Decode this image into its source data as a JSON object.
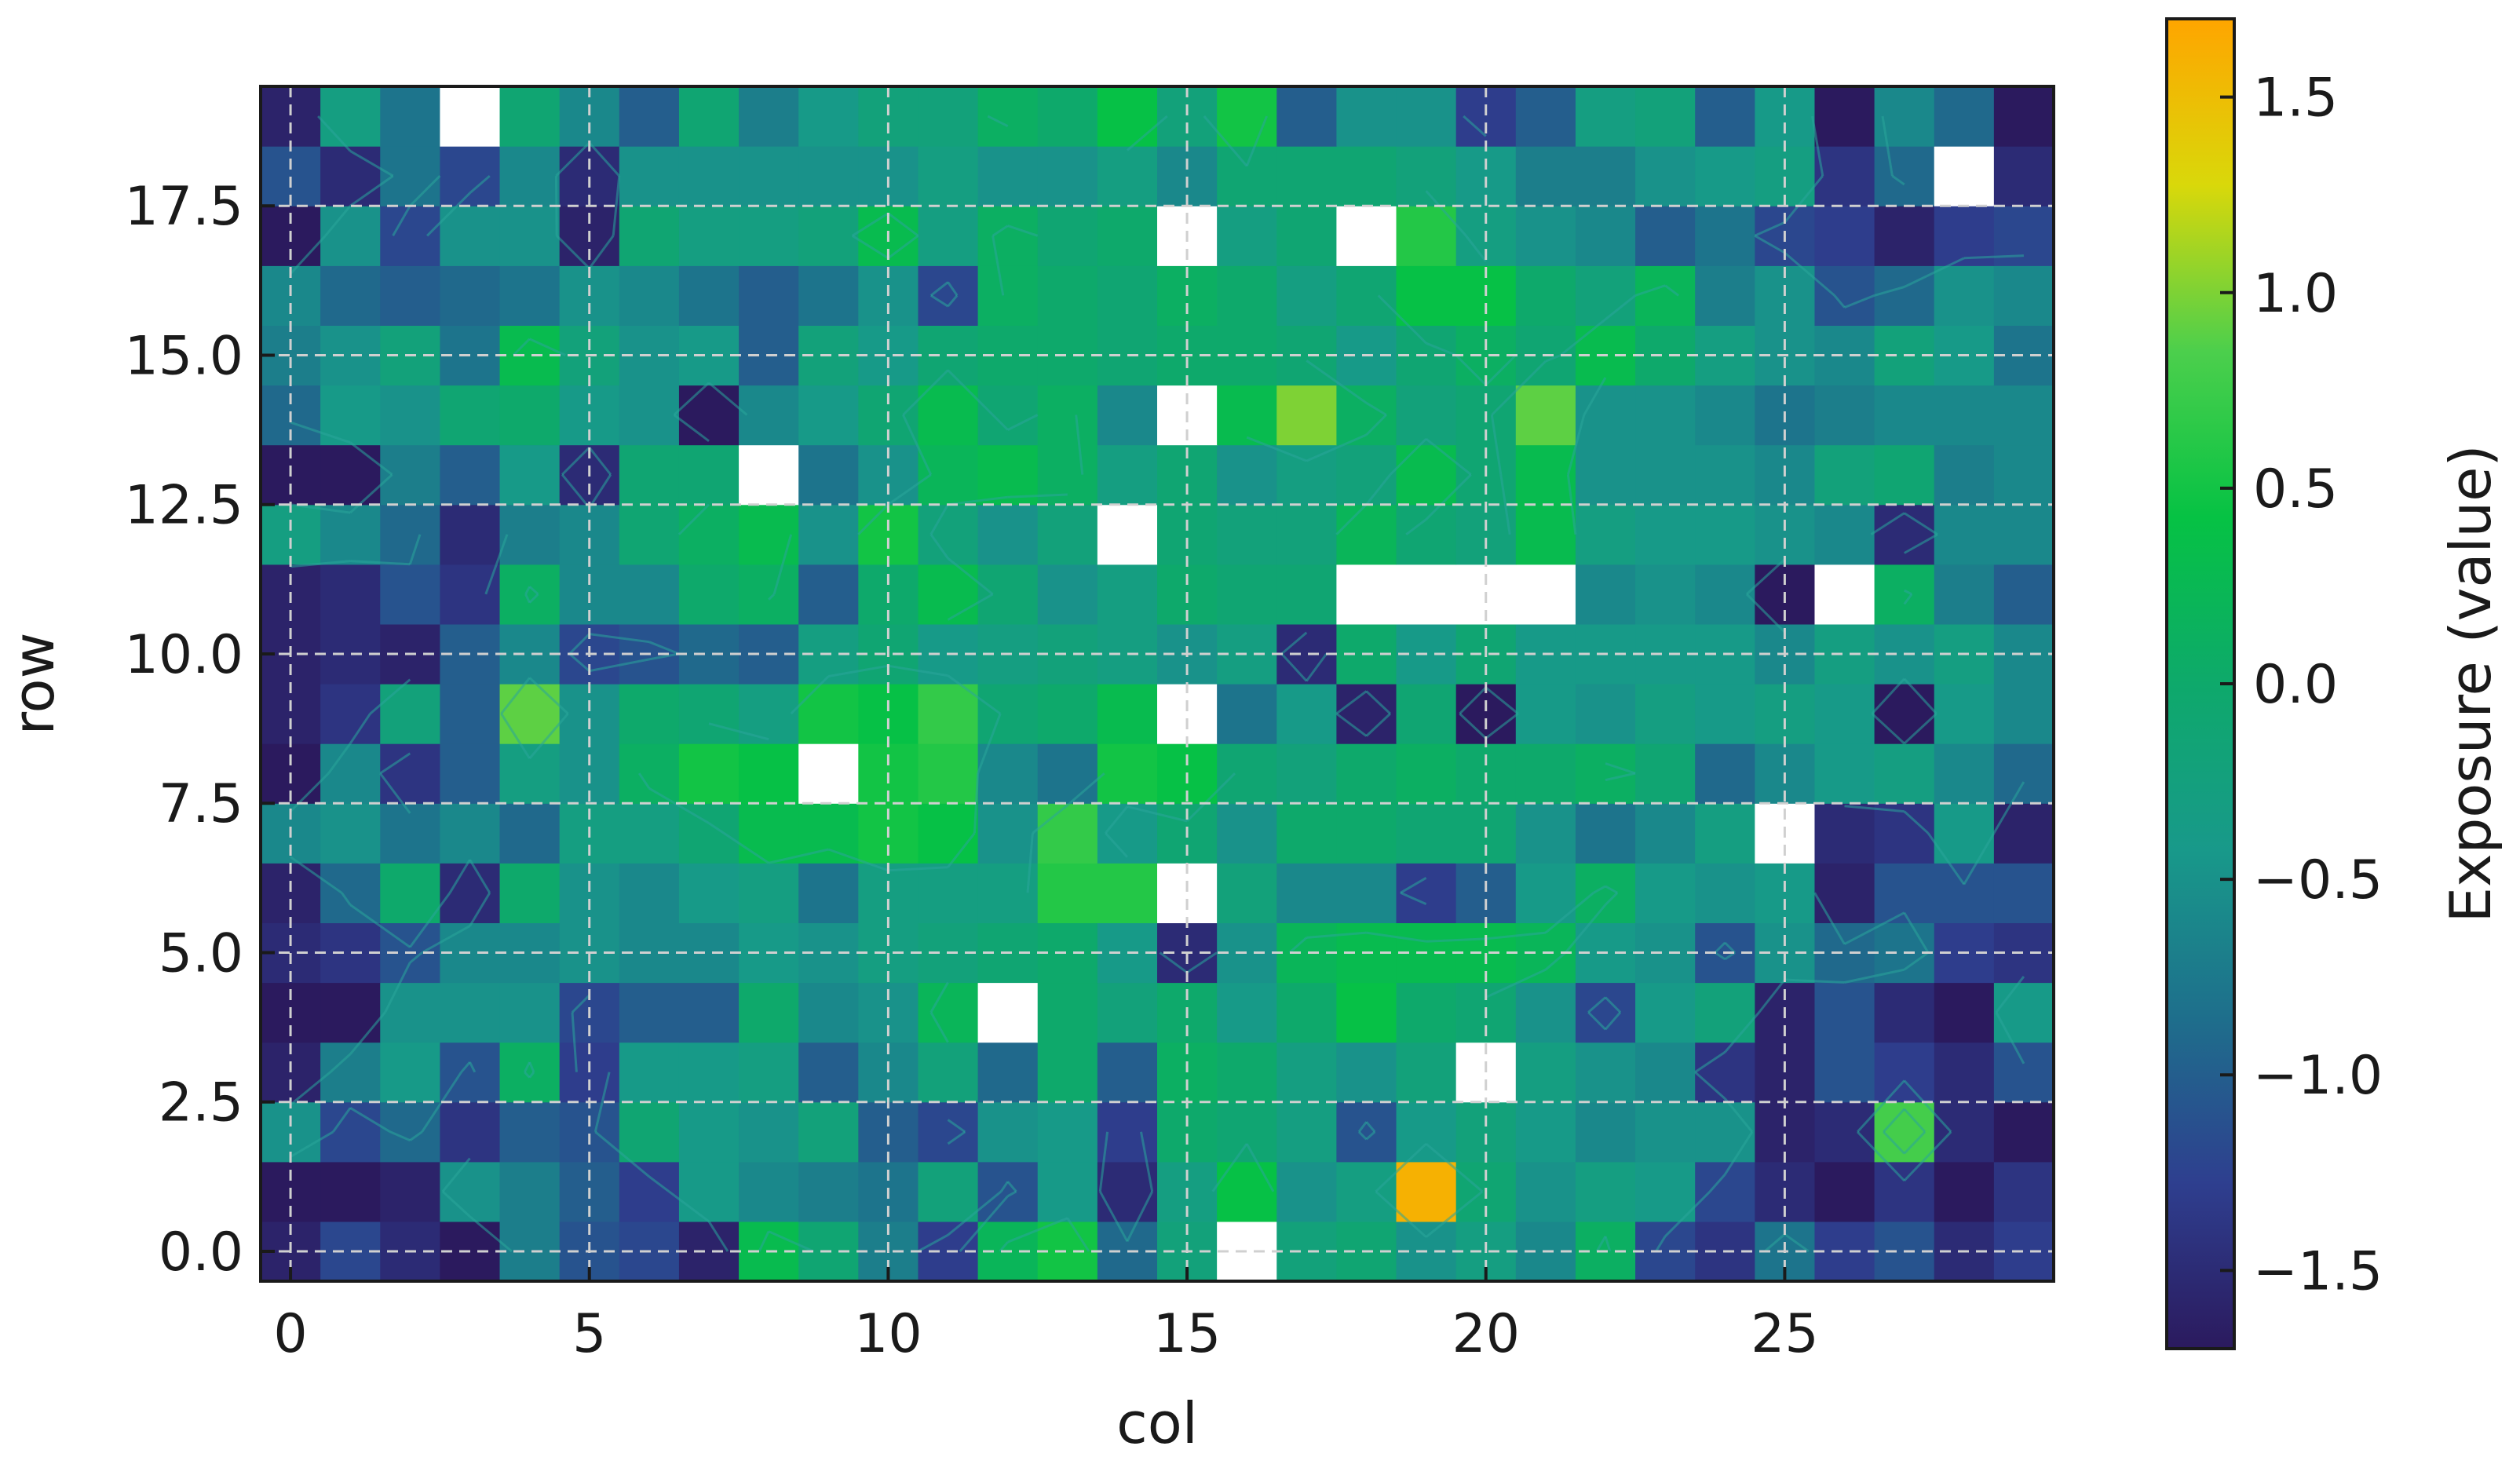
{
  "chart_data": {
    "type": "heatmap",
    "xlabel": "col",
    "ylabel": "row",
    "colorbar_label": "Exposure (value)",
    "x_ticks": [
      0,
      5,
      10,
      15,
      20,
      25
    ],
    "x_tick_labels": [
      "0",
      "5",
      "10",
      "15",
      "20",
      "25"
    ],
    "y_ticks": [
      0.0,
      2.5,
      5.0,
      7.5,
      10.0,
      12.5,
      15.0,
      17.5
    ],
    "y_tick_labels": [
      "0.0",
      "2.5",
      "5.0",
      "7.5",
      "10.0",
      "12.5",
      "15.0",
      "17.5"
    ],
    "colorbar_ticks": [
      -1.5,
      -1.0,
      -0.5,
      0.0,
      0.5,
      1.0,
      1.5
    ],
    "colorbar_tick_labels": [
      "−1.5",
      "−1.0",
      "−0.5",
      "0.0",
      "0.5",
      "1.0",
      "1.5"
    ],
    "colorbar_range": [
      -1.7,
      1.7
    ],
    "colormap": "viridis-like (dark navy to teal to green to orange)",
    "colorbar_colors": [
      "#2b1a5e",
      "#2e3f8f",
      "#1e6f8c",
      "#18998a",
      "#0ea96b",
      "#06c244",
      "#4ccf4c",
      "#d9d80a",
      "#ffa500"
    ],
    "xlim": [
      -0.5,
      29.5
    ],
    "ylim": [
      -0.5,
      19.5
    ],
    "grid": true,
    "missing_color": "#ffffff",
    "contour_color": "#2aa69a",
    "note_missing": "white cells are missing values (NaN)",
    "rows": [
      [
        -1.6,
        -1.2,
        -1.5,
        -1.7,
        -0.7,
        -1.1,
        -1.2,
        -1.6,
        0.3,
        -0.1,
        -0.7,
        -1.3,
        0.2,
        0.5,
        -0.9,
        -0.2,
        null,
        -0.2,
        -0.1,
        -0.5,
        -0.3,
        -0.6,
        0.1,
        -1.2,
        -1.4,
        -0.8,
        -1.3,
        -1.1,
        -1.5,
        -1.3
      ],
      [
        -1.7,
        -1.8,
        -1.6,
        -0.5,
        -0.7,
        -1.0,
        -1.3,
        -0.4,
        -0.6,
        -0.7,
        -0.8,
        -0.2,
        -1.1,
        -0.4,
        -1.5,
        -0.3,
        0.4,
        -0.5,
        -0.3,
        1.6,
        -0.1,
        -0.5,
        -0.3,
        -0.4,
        -1.2,
        -1.5,
        -1.7,
        -1.4,
        -1.8,
        -1.4
      ],
      [
        -0.5,
        -1.2,
        -0.9,
        -1.4,
        -1.0,
        -1.1,
        -0.1,
        -0.4,
        -0.5,
        -0.2,
        -1.0,
        -1.2,
        -0.5,
        -0.4,
        -1.3,
        0.0,
        -0.1,
        -0.3,
        -1.1,
        -0.4,
        -0.2,
        -0.4,
        -0.6,
        -0.5,
        -0.5,
        -1.6,
        -1.5,
        0.8,
        -1.5,
        -1.8
      ],
      [
        -1.6,
        -0.7,
        -0.4,
        -1.1,
        0.1,
        -1.3,
        -0.4,
        -0.4,
        -0.3,
        -1.0,
        -0.6,
        -0.2,
        -0.9,
        0.0,
        -1.0,
        0.1,
        0.0,
        -0.3,
        -0.5,
        -0.2,
        null,
        -0.3,
        -0.5,
        -0.6,
        -1.4,
        -1.6,
        -1.1,
        -1.3,
        -1.5,
        -1.1
      ],
      [
        -1.7,
        -1.7,
        -0.5,
        -0.5,
        -0.5,
        -1.2,
        -1.0,
        -1.0,
        0.0,
        -0.6,
        -0.5,
        0.2,
        null,
        0.0,
        -0.2,
        0.0,
        -0.4,
        0.0,
        0.4,
        0.0,
        -0.1,
        -0.5,
        -1.2,
        -0.4,
        -0.2,
        -1.6,
        -1.1,
        -1.5,
        -1.7,
        -0.4
      ],
      [
        -1.5,
        -1.4,
        -1.1,
        -0.6,
        -0.6,
        -0.5,
        -0.6,
        -0.6,
        -0.4,
        -0.5,
        -0.3,
        -0.2,
        -0.1,
        0.0,
        -0.4,
        -1.5,
        -0.5,
        0.2,
        0.3,
        0.3,
        0.3,
        0.2,
        -0.4,
        -0.5,
        -1.1,
        -0.5,
        -0.9,
        -0.8,
        -1.3,
        -1.4
      ],
      [
        -1.6,
        -0.9,
        0.0,
        -1.5,
        0.0,
        -0.5,
        -0.6,
        -0.4,
        -0.3,
        -0.8,
        -0.3,
        -0.3,
        -0.3,
        0.6,
        0.6,
        null,
        -0.2,
        -0.6,
        -0.6,
        -1.3,
        -1.0,
        -0.4,
        0.1,
        -0.4,
        -0.5,
        -0.4,
        -1.6,
        -1.1,
        -1.1,
        -1.1
      ],
      [
        -0.6,
        -0.5,
        -0.8,
        -0.6,
        -0.9,
        -0.3,
        -0.3,
        -0.1,
        0.3,
        0.3,
        0.5,
        0.4,
        -0.5,
        0.7,
        -0.4,
        -0.1,
        -0.5,
        0.0,
        0.0,
        -0.1,
        -0.1,
        -0.5,
        -0.8,
        -0.6,
        -0.3,
        null,
        -1.5,
        -1.4,
        -0.4,
        -1.6
      ],
      [
        -1.7,
        -0.6,
        -1.4,
        -1.0,
        -0.3,
        -0.5,
        0.1,
        0.5,
        0.4,
        null,
        0.5,
        0.6,
        -0.6,
        -0.8,
        0.5,
        0.4,
        -0.1,
        -0.2,
        0.0,
        0.1,
        0.0,
        0.0,
        0.1,
        -0.1,
        -0.9,
        -0.6,
        -0.4,
        -0.3,
        -0.6,
        -0.9
      ],
      [
        -1.6,
        -1.4,
        -0.2,
        -1.0,
        0.9,
        -0.5,
        0.0,
        -0.1,
        -0.3,
        0.5,
        0.4,
        0.7,
        -0.1,
        0.0,
        0.3,
        null,
        -0.8,
        -0.4,
        -1.6,
        -0.1,
        -1.7,
        -0.4,
        -0.5,
        -0.3,
        -0.4,
        -0.3,
        -0.4,
        -1.7,
        -0.4,
        -0.6
      ],
      [
        -1.6,
        -1.5,
        -1.6,
        -1.0,
        -0.6,
        -1.2,
        -1.1,
        -0.9,
        -1.0,
        -0.3,
        -0.1,
        -0.4,
        -0.3,
        -0.2,
        -0.3,
        -0.5,
        -0.3,
        -1.5,
        0.0,
        -0.4,
        -0.1,
        -0.4,
        -0.4,
        -0.4,
        -0.4,
        -0.6,
        -0.3,
        -0.5,
        -0.3,
        -0.6
      ],
      [
        -1.6,
        -1.5,
        -1.1,
        -1.4,
        0.1,
        -0.6,
        -0.6,
        0.0,
        0.1,
        -1.0,
        0.0,
        0.3,
        -0.1,
        -0.5,
        -0.3,
        0.0,
        -0.1,
        -0.1,
        null,
        null,
        null,
        null,
        -0.6,
        -0.5,
        -0.6,
        -1.7,
        null,
        0.1,
        -0.7,
        -1.0
      ],
      [
        -0.3,
        -0.6,
        -0.9,
        -1.5,
        -0.7,
        -0.6,
        -0.1,
        0.1,
        0.3,
        -0.5,
        0.5,
        -0.2,
        -0.5,
        -0.2,
        null,
        -0.1,
        -0.2,
        -0.2,
        0.2,
        -0.1,
        -0.2,
        0.3,
        -0.3,
        -0.4,
        -0.4,
        -0.5,
        -0.6,
        -1.5,
        -0.6,
        -0.6
      ],
      [
        -1.7,
        -1.7,
        -0.7,
        -1.0,
        -0.4,
        -1.5,
        -0.1,
        -0.1,
        null,
        -0.8,
        -0.5,
        0.2,
        0.3,
        0.1,
        -0.3,
        -0.1,
        -0.5,
        -0.3,
        -0.2,
        0.3,
        -0.1,
        0.3,
        -0.5,
        -0.5,
        -0.5,
        -0.6,
        -0.2,
        -0.1,
        -0.7,
        -0.6
      ],
      [
        -0.9,
        -0.4,
        -0.5,
        -0.1,
        0.0,
        -0.4,
        -0.5,
        -1.7,
        -0.6,
        -0.4,
        -0.1,
        0.3,
        -0.1,
        0.1,
        -0.6,
        null,
        0.3,
        1.0,
        0.1,
        -0.2,
        -0.1,
        0.9,
        -0.5,
        -0.5,
        -0.6,
        -0.8,
        -0.7,
        -0.6,
        -0.6,
        -0.6
      ],
      [
        -0.7,
        -0.5,
        -0.2,
        -0.8,
        0.3,
        -0.2,
        -0.5,
        -0.4,
        -1.0,
        -0.2,
        -0.4,
        -0.1,
        0.0,
        0.0,
        -0.1,
        0.0,
        0.0,
        -0.1,
        -0.4,
        -0.1,
        0.1,
        -0.1,
        0.3,
        0.0,
        -0.3,
        -0.5,
        -0.6,
        -0.2,
        -0.4,
        -0.8
      ],
      [
        -0.6,
        -0.9,
        -1.0,
        -0.9,
        -0.8,
        -0.5,
        -0.6,
        -0.8,
        -1.0,
        -0.8,
        -0.5,
        -1.2,
        0.1,
        0.0,
        -0.1,
        0.1,
        0.0,
        -0.3,
        -0.1,
        0.4,
        0.4,
        0.0,
        -0.2,
        0.2,
        -0.7,
        -0.5,
        -1.1,
        -0.9,
        -0.5,
        -0.6
      ],
      [
        -1.7,
        -0.5,
        -1.2,
        -0.5,
        -0.5,
        -1.6,
        -0.1,
        -0.3,
        -0.3,
        -0.2,
        0.3,
        -0.3,
        0.1,
        -0.1,
        0.0,
        null,
        -0.3,
        -0.1,
        null,
        0.6,
        -0.3,
        -0.5,
        -0.6,
        -1.0,
        -0.8,
        -1.2,
        -1.3,
        -1.6,
        -1.3,
        -1.2
      ],
      [
        -1.1,
        -1.5,
        -0.8,
        -1.2,
        -0.6,
        -1.5,
        -0.5,
        -0.5,
        -0.5,
        -0.5,
        -0.5,
        -0.3,
        -0.5,
        -0.5,
        -0.3,
        -0.6,
        -0.1,
        -0.1,
        -0.1,
        -0.2,
        -0.4,
        -0.7,
        -0.7,
        -0.5,
        -0.4,
        -0.3,
        -1.4,
        -0.9,
        null,
        -1.5
      ],
      [
        -1.6,
        -0.3,
        -0.8,
        null,
        -0.1,
        -0.6,
        -1.0,
        -0.1,
        -0.7,
        -0.4,
        -0.2,
        -0.2,
        0.1,
        0.0,
        0.4,
        -0.2,
        0.5,
        -1.0,
        -0.5,
        -0.5,
        -1.3,
        -1.0,
        -0.3,
        -0.2,
        -1.0,
        -0.4,
        -1.7,
        -0.6,
        -0.9,
        -1.7
      ]
    ]
  }
}
